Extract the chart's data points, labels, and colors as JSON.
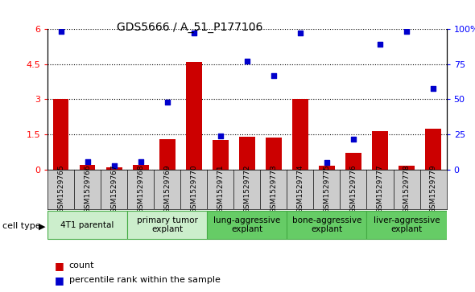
{
  "title": "GDS5666 / A_51_P177106",
  "samples": [
    "GSM1529765",
    "GSM1529766",
    "GSM1529767",
    "GSM1529768",
    "GSM1529769",
    "GSM1529770",
    "GSM1529771",
    "GSM1529772",
    "GSM1529773",
    "GSM1529774",
    "GSM1529775",
    "GSM1529776",
    "GSM1529777",
    "GSM1529778",
    "GSM1529779"
  ],
  "counts": [
    3.0,
    0.2,
    0.1,
    0.2,
    1.3,
    4.6,
    1.25,
    1.4,
    1.35,
    3.0,
    0.15,
    0.7,
    1.65,
    0.15,
    1.75
  ],
  "percentiles_scaled": [
    5.9,
    0.32,
    0.15,
    0.32,
    2.87,
    5.85,
    1.42,
    4.63,
    4.0,
    5.85,
    0.28,
    1.28,
    5.35,
    5.9,
    3.45
  ],
  "groups": [
    {
      "name": "4T1 parental",
      "indices": [
        0,
        1,
        2
      ],
      "color": "#cceecc"
    },
    {
      "name": "primary tumor\nexplant",
      "indices": [
        3,
        4,
        5
      ],
      "color": "#cceecc"
    },
    {
      "name": "lung-aggressive\nexplant",
      "indices": [
        6,
        7,
        8
      ],
      "color": "#66cc66"
    },
    {
      "name": "bone-aggressive\nexplant",
      "indices": [
        9,
        10,
        11
      ],
      "color": "#66cc66"
    },
    {
      "name": "liver-aggressive\nexplant",
      "indices": [
        12,
        13,
        14
      ],
      "color": "#66cc66"
    }
  ],
  "ylim_left": [
    0,
    6
  ],
  "ylim_right": [
    0,
    100
  ],
  "yticks_left": [
    0,
    1.5,
    3.0,
    4.5,
    6.0
  ],
  "yticks_right": [
    0,
    25,
    50,
    75,
    100
  ],
  "bar_color": "#cc0000",
  "dot_color": "#0000cc",
  "legend_count_label": "count",
  "legend_pct_label": "percentile rank within the sample",
  "xtick_bg_color": "#cccccc"
}
